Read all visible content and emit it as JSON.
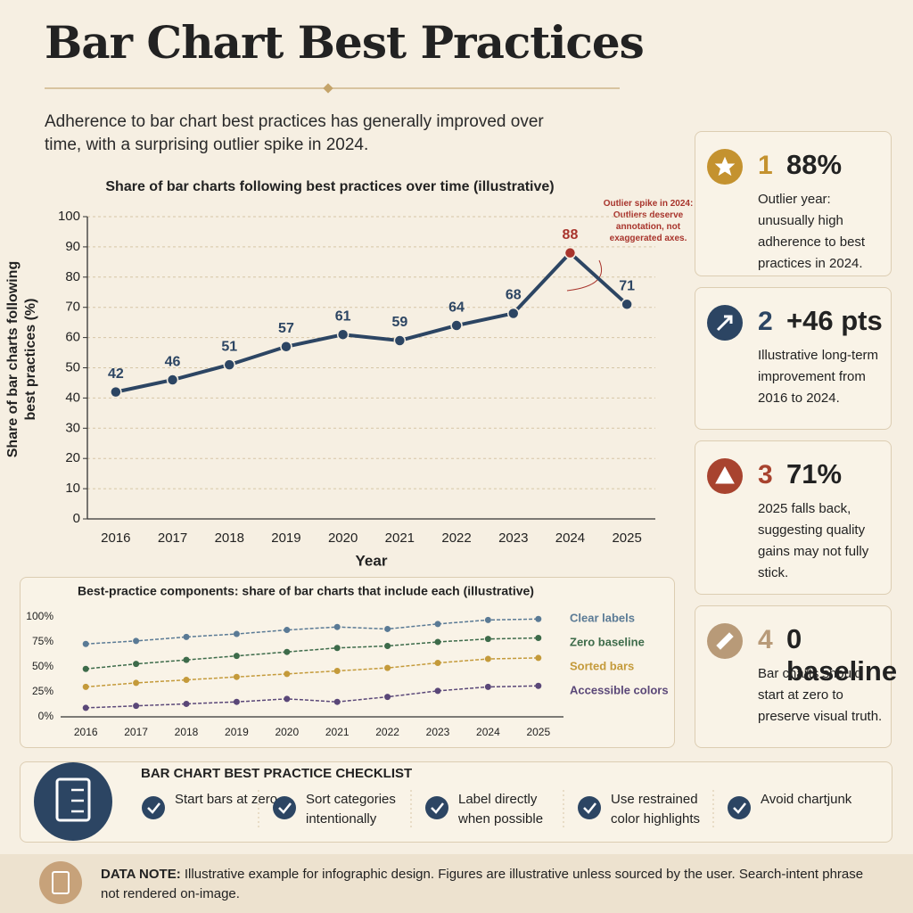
{
  "header": {
    "title": "Bar Chart Best Practices",
    "intro": "Adherence to bar chart best practices has generally improved over time, with a surprising outlier spike in 2024."
  },
  "chart_data": [
    {
      "type": "line",
      "title": "Share of bar charts following best practices over time (illustrative)",
      "xlabel": "Year",
      "ylabel": "Share of bar charts following best practices (%)",
      "categories": [
        "2016",
        "2017",
        "2018",
        "2019",
        "2020",
        "2021",
        "2022",
        "2023",
        "2024",
        "2025"
      ],
      "values": [
        42,
        46,
        51,
        57,
        61,
        59,
        64,
        68,
        88,
        71
      ],
      "color": "#2c4563",
      "point_colors": [
        "#2c4563",
        "#2c4563",
        "#2c4563",
        "#2c4563",
        "#2c4563",
        "#2c4563",
        "#2c4563",
        "#2c4563",
        "#a8342c",
        "#2c4563"
      ],
      "data_labels": true,
      "annotation": "Outlier spike in 2024: Outliers deserve annotation, not exaggerated axes.",
      "ylim": [
        0,
        100
      ],
      "yticks": [
        0,
        10,
        20,
        30,
        40,
        50,
        60,
        70,
        80,
        90,
        100
      ],
      "grid": true
    },
    {
      "type": "line",
      "title": "Best-practice components: share of bar charts that include each (illustrative)",
      "categories": [
        "2016",
        "2017",
        "2018",
        "2019",
        "2020",
        "2021",
        "2022",
        "2023",
        "2024",
        "2025"
      ],
      "series": [
        {
          "name": "Clear labels",
          "color": "#5a7a95",
          "values": [
            73,
            76,
            80,
            83,
            87,
            90,
            88,
            93,
            97,
            98
          ]
        },
        {
          "name": "Zero baseline",
          "color": "#3d6b4a",
          "values": [
            48,
            53,
            57,
            61,
            65,
            69,
            71,
            75,
            78,
            79
          ]
        },
        {
          "name": "Sorted bars",
          "color": "#c49a3a",
          "values": [
            30,
            34,
            37,
            40,
            43,
            46,
            49,
            54,
            58,
            59
          ]
        },
        {
          "name": "Accessible colors",
          "color": "#5a4778",
          "values": [
            9,
            11,
            13,
            15,
            18,
            15,
            20,
            26,
            30,
            31
          ]
        }
      ],
      "dashed": true,
      "ylim": [
        0,
        100
      ],
      "yticks": [
        {
          "value": 0,
          "label": "0%"
        },
        {
          "value": 25,
          "label": "25%"
        },
        {
          "value": 50,
          "label": "50%"
        },
        {
          "value": 75,
          "label": "75%"
        },
        {
          "value": 100,
          "label": "100%"
        }
      ],
      "grid": false
    }
  ],
  "cards": [
    {
      "number": 1,
      "value": "88%",
      "text": "Outlier year: unusually high adherence to best practices in 2024.",
      "color": "#c4922f"
    },
    {
      "number": 2,
      "value": "+46 pts",
      "text": "Illustrative long-term improvement from 2016 to 2024.",
      "color": "#2c4563"
    },
    {
      "number": 3,
      "value": "71%",
      "text": "2025 falls back, suggesting quality gains may not fully stick.",
      "color": "#a8432f"
    },
    {
      "number": 4,
      "value": "0 baseline",
      "text": "Bar charts should start at zero to preserve visual truth.",
      "color": "#b89a78"
    }
  ],
  "checklist": {
    "title": "BAR CHART BEST PRACTICE CHECKLIST",
    "items": [
      "Start bars at zero",
      "Sort categories intentionally",
      "Label directly when possible",
      "Use restrained color highlights",
      "Avoid chartjunk"
    ]
  },
  "note": {
    "label": "DATA NOTE:",
    "text": "Illustrative example for infographic design. Figures are illustrative unless sourced by the user. Search-intent phrase not rendered on-image."
  }
}
